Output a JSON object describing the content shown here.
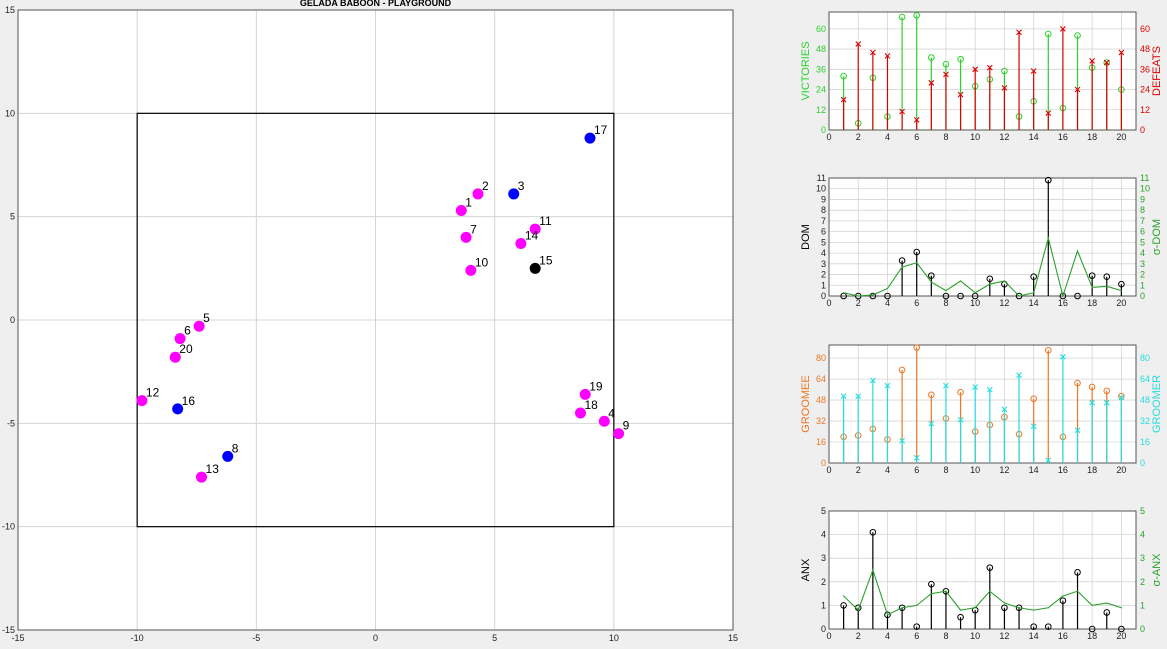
{
  "chart_data": [
    {
      "type": "scatter",
      "title": "GELADA BABOON - PLAYGROUND",
      "xlim": [
        -15,
        15
      ],
      "ylim": [
        -15,
        15
      ],
      "ticks": [
        "-15",
        "-10",
        "-5",
        "0",
        "5",
        "10",
        "15"
      ],
      "grid": true,
      "boundary": {
        "x": [
          -10,
          10
        ],
        "y": [
          -10,
          10
        ]
      },
      "points": [
        {
          "label": "1",
          "x": 3.6,
          "y": 5.3,
          "color": "#ff00ff"
        },
        {
          "label": "2",
          "x": 4.3,
          "y": 6.1,
          "color": "#ff00ff"
        },
        {
          "label": "3",
          "x": 5.8,
          "y": 6.1,
          "color": "#0000ff"
        },
        {
          "label": "4",
          "x": 9.6,
          "y": -4.9,
          "color": "#ff00ff"
        },
        {
          "label": "5",
          "x": -7.4,
          "y": -0.3,
          "color": "#ff00ff"
        },
        {
          "label": "6",
          "x": -8.2,
          "y": -0.9,
          "color": "#ff00ff"
        },
        {
          "label": "7",
          "x": 3.8,
          "y": 4.0,
          "color": "#ff00ff"
        },
        {
          "label": "8",
          "x": -6.2,
          "y": -6.6,
          "color": "#0000ff"
        },
        {
          "label": "9",
          "x": 10.2,
          "y": -5.5,
          "color": "#ff00ff"
        },
        {
          "label": "10",
          "x": 4.0,
          "y": 2.4,
          "color": "#ff00ff"
        },
        {
          "label": "11",
          "x": 6.7,
          "y": 4.4,
          "color": "#ff00ff"
        },
        {
          "label": "12",
          "x": -9.8,
          "y": -3.9,
          "color": "#ff00ff"
        },
        {
          "label": "13",
          "x": -7.3,
          "y": -7.6,
          "color": "#ff00ff"
        },
        {
          "label": "14",
          "x": 6.1,
          "y": 3.7,
          "color": "#ff00ff"
        },
        {
          "label": "15",
          "x": 6.7,
          "y": 2.5,
          "color": "#000000"
        },
        {
          "label": "16",
          "x": -8.3,
          "y": -4.3,
          "color": "#0000ff"
        },
        {
          "label": "17",
          "x": 9.0,
          "y": 8.8,
          "color": "#0000ff"
        },
        {
          "label": "18",
          "x": 8.6,
          "y": -4.5,
          "color": "#ff00ff"
        },
        {
          "label": "19",
          "x": 8.8,
          "y": -3.6,
          "color": "#ff00ff"
        },
        {
          "label": "20",
          "x": -8.4,
          "y": -1.8,
          "color": "#ff00ff"
        }
      ]
    },
    {
      "type": "stem",
      "x": [
        1,
        2,
        3,
        4,
        5,
        6,
        7,
        8,
        9,
        10,
        11,
        12,
        13,
        14,
        15,
        16,
        17,
        18,
        19,
        20
      ],
      "xticks": [
        "0",
        "2",
        "4",
        "6",
        "8",
        "10",
        "12",
        "14",
        "16",
        "18",
        "20"
      ],
      "xlim": [
        0,
        21
      ],
      "series": [
        {
          "name": "VICTORIES",
          "axis": "left",
          "color": "#2bd12b",
          "marker": "o",
          "values": [
            32,
            4,
            31,
            8,
            67,
            68,
            43,
            39,
            42,
            26,
            30,
            35,
            8,
            17,
            57,
            13,
            56,
            37,
            40,
            24
          ]
        },
        {
          "name": "DEFEATS",
          "axis": "right",
          "color": "#dd0000",
          "marker": "x",
          "values": [
            18,
            51,
            46,
            44,
            11,
            6,
            28,
            33,
            21,
            36,
            37,
            25,
            58,
            35,
            10,
            60,
            24,
            41,
            40,
            46
          ]
        }
      ],
      "ylim_left": [
        0,
        70
      ],
      "yticks_left": [
        "0",
        "12",
        "24",
        "36",
        "48",
        "60"
      ],
      "ylim_right": [
        0,
        70
      ],
      "yticks_right": [
        "0",
        "12",
        "24",
        "36",
        "48",
        "60"
      ]
    },
    {
      "type": "stem+line",
      "x": [
        1,
        2,
        3,
        4,
        5,
        6,
        7,
        8,
        9,
        10,
        11,
        12,
        13,
        14,
        15,
        16,
        17,
        18,
        19,
        20
      ],
      "xticks": [
        "0",
        "2",
        "4",
        "6",
        "8",
        "10",
        "12",
        "14",
        "16",
        "18",
        "20"
      ],
      "xlim": [
        0,
        21
      ],
      "series": [
        {
          "name": "DOM",
          "axis": "left",
          "color": "#000000",
          "marker": "o",
          "values": [
            0,
            0,
            0,
            0,
            3.3,
            4.1,
            1.9,
            0,
            0,
            0,
            1.6,
            1.1,
            0,
            1.8,
            10.8,
            0,
            0,
            1.9,
            1.8,
            1.1
          ]
        },
        {
          "name": "σ-DOM",
          "axis": "right",
          "color": "#2ca02c",
          "marker": "line",
          "values": [
            0.3,
            0,
            0.1,
            0.7,
            2.7,
            3.1,
            1.3,
            0.5,
            1.4,
            0.3,
            1.1,
            1.4,
            0,
            0.3,
            5.4,
            0,
            4.2,
            0.8,
            0.9,
            0.5
          ]
        }
      ],
      "ylim_left": [
        0,
        11
      ],
      "yticks_left": [
        "0",
        "1",
        "2",
        "3",
        "4",
        "5",
        "6",
        "7",
        "8",
        "9",
        "10",
        "11"
      ],
      "ylim_right": [
        0,
        11
      ],
      "yticks_right": [
        "0",
        "1",
        "2",
        "3",
        "4",
        "5",
        "6",
        "7",
        "8",
        "9",
        "10",
        "11"
      ]
    },
    {
      "type": "stem",
      "x": [
        1,
        2,
        3,
        4,
        5,
        6,
        7,
        8,
        9,
        10,
        11,
        12,
        13,
        14,
        15,
        16,
        17,
        18,
        19,
        20
      ],
      "xticks": [
        "0",
        "2",
        "4",
        "6",
        "8",
        "10",
        "12",
        "14",
        "16",
        "18",
        "20"
      ],
      "xlim": [
        0,
        21
      ],
      "series": [
        {
          "name": "GROOMEE",
          "axis": "left",
          "color": "#ee7722",
          "marker": "o",
          "values": [
            20,
            21,
            26,
            18,
            71,
            88,
            52,
            34,
            54,
            24,
            29,
            35,
            22,
            49,
            86,
            20,
            61,
            58,
            55,
            51
          ]
        },
        {
          "name": "GROOMER",
          "axis": "right",
          "color": "#22dddd",
          "marker": "x",
          "values": [
            51,
            51,
            63,
            59,
            17,
            4,
            30,
            59,
            33,
            58,
            56,
            41,
            67,
            28,
            2,
            81,
            25,
            46,
            46,
            50
          ]
        }
      ],
      "ylim_left": [
        0,
        90
      ],
      "yticks_left": [
        "0",
        "16",
        "32",
        "48",
        "64",
        "80"
      ],
      "ylim_right": [
        0,
        90
      ],
      "yticks_right": [
        "0",
        "16",
        "32",
        "48",
        "64",
        "80"
      ]
    },
    {
      "type": "stem+line",
      "x": [
        1,
        2,
        3,
        4,
        5,
        6,
        7,
        8,
        9,
        10,
        11,
        12,
        13,
        14,
        15,
        16,
        17,
        18,
        19,
        20
      ],
      "xticks": [
        "0",
        "2",
        "4",
        "6",
        "8",
        "10",
        "12",
        "14",
        "16",
        "18",
        "20"
      ],
      "xlim": [
        0,
        21
      ],
      "series": [
        {
          "name": "ANX",
          "axis": "left",
          "color": "#000000",
          "marker": "o",
          "values": [
            1.0,
            0.9,
            4.1,
            0.6,
            0.9,
            0.1,
            1.9,
            1.6,
            0.5,
            0.8,
            2.6,
            0.9,
            0.9,
            0.1,
            0.1,
            1.2,
            2.4,
            0,
            0.7,
            0
          ]
        },
        {
          "name": "σ-ANX",
          "axis": "right",
          "color": "#2ca02c",
          "marker": "line",
          "values": [
            1.4,
            0.8,
            2.5,
            0.6,
            0.9,
            1.0,
            1.5,
            1.6,
            0.8,
            0.9,
            1.6,
            1.1,
            0.9,
            0.8,
            0.9,
            1.4,
            1.6,
            1.0,
            1.1,
            0.9
          ]
        }
      ],
      "ylim_left": [
        0,
        5
      ],
      "yticks_left": [
        "0",
        "1",
        "2",
        "3",
        "4",
        "5"
      ],
      "ylim_right": [
        0,
        5
      ],
      "yticks_right": [
        "0",
        "1",
        "2",
        "3",
        "4",
        "5"
      ]
    }
  ],
  "colors": {
    "background": "#efefef",
    "plot_bg": "#ffffff",
    "grid": "#d4d4d4",
    "axis": "#555555"
  }
}
